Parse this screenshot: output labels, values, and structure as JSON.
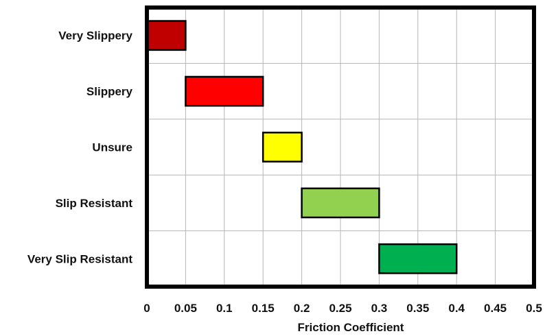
{
  "chart_data": {
    "type": "bar",
    "orientation": "horizontal",
    "subtype": "floating-range",
    "xlabel": "Friction Coefficient",
    "ylabel": "",
    "title": "",
    "xlim": [
      0,
      0.5
    ],
    "x_ticks": [
      "0",
      "0.05",
      "0.1",
      "0.15",
      "0.2",
      "0.25",
      "0.3",
      "0.35",
      "0.4",
      "0.45",
      "0.5"
    ],
    "grid": true,
    "legend": "none",
    "categories": [
      "Very Slippery",
      "Slippery",
      "Unsure",
      "Slip Resistant",
      "Very Slip Resistant"
    ],
    "ranges": [
      {
        "label": "Very Slippery",
        "start": 0,
        "end": 0.05,
        "color": "#C00000"
      },
      {
        "label": "Slippery",
        "start": 0.05,
        "end": 0.15,
        "color": "#FF0000"
      },
      {
        "label": "Unsure",
        "start": 0.15,
        "end": 0.2,
        "color": "#FFFF00"
      },
      {
        "label": "Slip Resistant",
        "start": 0.2,
        "end": 0.3,
        "color": "#92D050"
      },
      {
        "label": "Very Slip Resistant",
        "start": 0.3,
        "end": 0.4,
        "color": "#00B050"
      }
    ]
  }
}
